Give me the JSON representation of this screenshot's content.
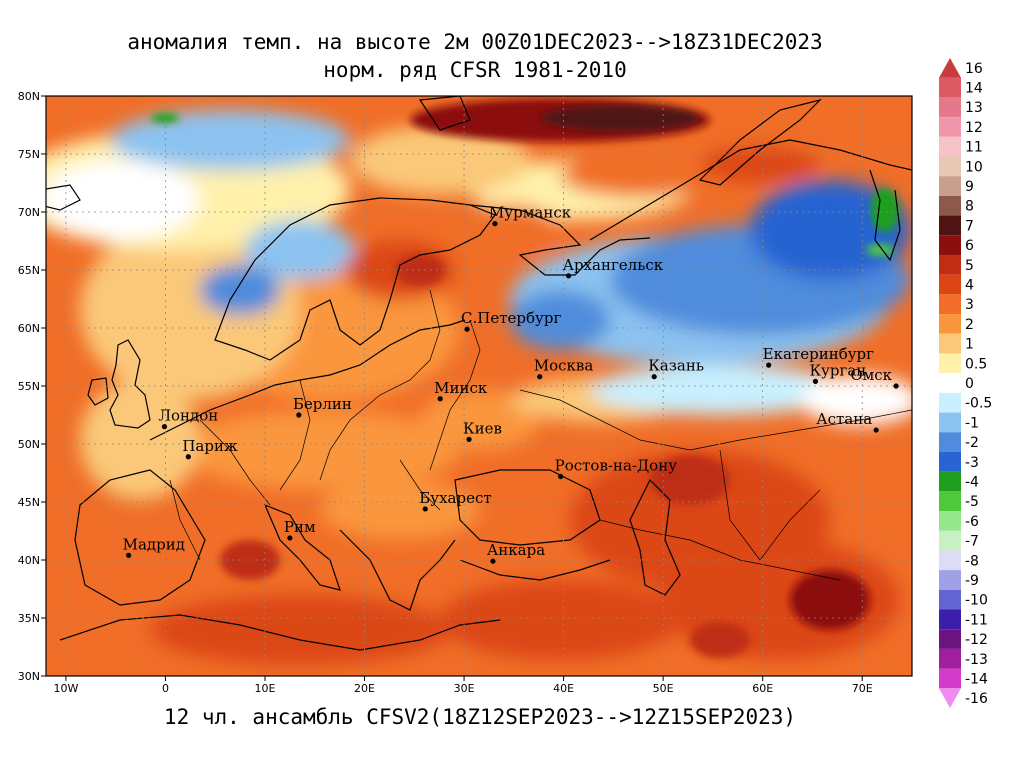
{
  "title": {
    "line1": "аномалия темп. на высоте 2м 00Z01DEC2023-->18Z31DEC2023",
    "line2": "норм. ряд CFSR 1981-2010"
  },
  "footer": "12 чл. ансамбль CFSV2(18Z12SEP2023-->12Z15SEP2023)",
  "map": {
    "lon_range": [
      -12,
      75
    ],
    "lat_range": [
      30,
      80
    ],
    "lat_ticks": [
      {
        "value": 80,
        "label": "80N"
      },
      {
        "value": 75,
        "label": "75N"
      },
      {
        "value": 70,
        "label": "70N"
      },
      {
        "value": 65,
        "label": "65N"
      },
      {
        "value": 60,
        "label": "60N"
      },
      {
        "value": 55,
        "label": "55N"
      },
      {
        "value": 50,
        "label": "50N"
      },
      {
        "value": 45,
        "label": "45N"
      },
      {
        "value": 40,
        "label": "40N"
      },
      {
        "value": 35,
        "label": "35N"
      },
      {
        "value": 30,
        "label": "30N"
      }
    ],
    "lon_ticks": [
      {
        "value": -10,
        "label": "10W"
      },
      {
        "value": 0,
        "label": "0"
      },
      {
        "value": 10,
        "label": "10E"
      },
      {
        "value": 20,
        "label": "20E"
      },
      {
        "value": 30,
        "label": "30E"
      },
      {
        "value": 40,
        "label": "40E"
      },
      {
        "value": 50,
        "label": "50E"
      },
      {
        "value": 60,
        "label": "60E"
      },
      {
        "value": 70,
        "label": "70E"
      }
    ],
    "cities": [
      {
        "name": "Мурманск",
        "lon": 33.1,
        "lat": 69.0
      },
      {
        "name": "Архангельск",
        "lon": 40.5,
        "lat": 64.5
      },
      {
        "name": "С.Петербург",
        "lon": 30.3,
        "lat": 59.9
      },
      {
        "name": "Москва",
        "lon": 37.6,
        "lat": 55.8
      },
      {
        "name": "Казань",
        "lon": 49.1,
        "lat": 55.8
      },
      {
        "name": "Екатеринбург",
        "lon": 60.6,
        "lat": 56.8
      },
      {
        "name": "Курган",
        "lon": 65.3,
        "lat": 55.4
      },
      {
        "name": "Омск",
        "lon": 73.4,
        "lat": 55.0
      },
      {
        "name": "Астана",
        "lon": 71.4,
        "lat": 51.2
      },
      {
        "name": "Минск",
        "lon": 27.6,
        "lat": 53.9
      },
      {
        "name": "Берлин",
        "lon": 13.4,
        "lat": 52.5
      },
      {
        "name": "Лондон",
        "lon": -0.1,
        "lat": 51.5
      },
      {
        "name": "Париж",
        "lon": 2.3,
        "lat": 48.9
      },
      {
        "name": "Киев",
        "lon": 30.5,
        "lat": 50.4
      },
      {
        "name": "Ростов-на-Дону",
        "lon": 39.7,
        "lat": 47.2
      },
      {
        "name": "Бухарест",
        "lon": 26.1,
        "lat": 44.4
      },
      {
        "name": "Рим",
        "lon": 12.5,
        "lat": 41.9
      },
      {
        "name": "Мадрид",
        "lon": -3.7,
        "lat": 40.4
      },
      {
        "name": "Анкара",
        "lon": 32.9,
        "lat": 39.9
      }
    ]
  },
  "colorbar": [
    {
      "label": "16",
      "color": "#c83c3c"
    },
    {
      "label": "14",
      "color": "#dc5a64"
    },
    {
      "label": "13",
      "color": "#e6788c"
    },
    {
      "label": "12",
      "color": "#f096aa"
    },
    {
      "label": "11",
      "color": "#f5c3c8"
    },
    {
      "label": "10",
      "color": "#e6c8b4"
    },
    {
      "label": "9",
      "color": "#c8a08c"
    },
    {
      "label": "8",
      "color": "#8c5a4b"
    },
    {
      "label": "7",
      "color": "#501414"
    },
    {
      "label": "6",
      "color": "#8c0f0f"
    },
    {
      "label": "5",
      "color": "#be2d14"
    },
    {
      "label": "4",
      "color": "#dc4614"
    },
    {
      "label": "3",
      "color": "#f06e28"
    },
    {
      "label": "2",
      "color": "#fa963c"
    },
    {
      "label": "1",
      "color": "#fac878"
    },
    {
      "label": "0.5",
      "color": "#fff0aa"
    },
    {
      "label": "0",
      "color": "#ffffff"
    },
    {
      "label": "-0.5",
      "color": "#c8f0ff"
    },
    {
      "label": "-1",
      "color": "#8cc3f0"
    },
    {
      "label": "-2",
      "color": "#508cdc"
    },
    {
      "label": "-3",
      "color": "#2864d2"
    },
    {
      "label": "-4",
      "color": "#1ea01e"
    },
    {
      "label": "-5",
      "color": "#50c83c"
    },
    {
      "label": "-6",
      "color": "#96e68c"
    },
    {
      "label": "-7",
      "color": "#c8f0c3"
    },
    {
      "label": "-8",
      "color": "#dcdcf5"
    },
    {
      "label": "-9",
      "color": "#a0a0e6"
    },
    {
      "label": "-10",
      "color": "#6464d2"
    },
    {
      "label": "-11",
      "color": "#3c1eaa"
    },
    {
      "label": "-12",
      "color": "#6e1482"
    },
    {
      "label": "-13",
      "color": "#a01ea0"
    },
    {
      "label": "-14",
      "color": "#d23cc8"
    },
    {
      "label": "-16",
      "color": "#f08cf0"
    }
  ]
}
